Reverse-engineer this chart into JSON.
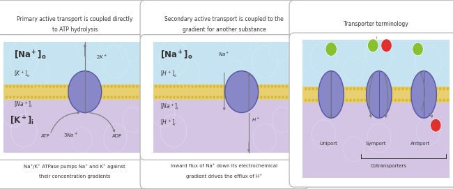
{
  "fig_width": 6.5,
  "fig_height": 2.71,
  "bg_color": "#f0f0f0",
  "panel_border_color": "#b0b0b0",
  "cell_outer_color": "#c5e3f0",
  "cell_inner_color": "#d5c5e5",
  "membrane_color": "#e8d070",
  "protein_fill": "#8888c8",
  "protein_edge": "#5555a0",
  "arrow_color": "#777777",
  "text_color": "#333333",
  "green_dot": "#88c030",
  "red_dot": "#e03030",
  "white_box": "#ffffff",
  "panel1_title_l1": "Primary active transport is coupled directly",
  "panel1_title_l2": "to ATP hydrolysis",
  "panel2_title_l1": "Secondary active transport is coupled to the",
  "panel2_title_l2": "gradient for another substance",
  "panel3_title": "Transporter terminology",
  "panel1_caption_l1": "Na⁺/K⁺ ATPase pumps Na⁺ and K⁺ against",
  "panel1_caption_l2": "their concentration gradients",
  "panel2_caption_l1": "Inward flux of Na⁺ down its electrochemical",
  "panel2_caption_l2": "gradient drives the efflux of H⁺"
}
